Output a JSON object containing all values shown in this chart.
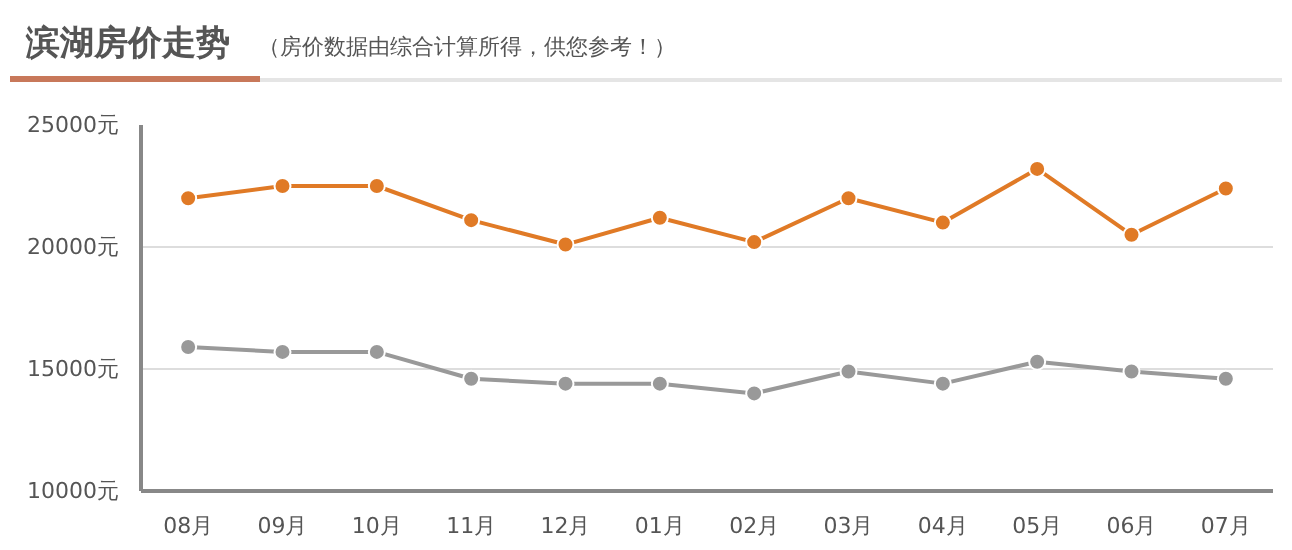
{
  "chart_data": {
    "type": "line",
    "title": "滨湖房价走势",
    "subtitle": "（房价数据由综合计算所得，供您参考！）",
    "categories": [
      "08月",
      "09月",
      "10月",
      "11月",
      "12月",
      "01月",
      "02月",
      "03月",
      "04月",
      "05月",
      "06月",
      "07月"
    ],
    "series": [
      {
        "color": "#e07a26",
        "values": [
          22000,
          22500,
          22500,
          21100,
          20100,
          21200,
          20200,
          22000,
          21000,
          23200,
          20500,
          22400
        ]
      },
      {
        "color": "#999999",
        "values": [
          15900,
          15700,
          15700,
          14600,
          14400,
          14400,
          14000,
          14900,
          14400,
          15300,
          14900,
          14600
        ]
      }
    ],
    "ylim": [
      10000,
      25000
    ],
    "yticks": [
      {
        "value": 10000,
        "label": "10000元"
      },
      {
        "value": 15000,
        "label": "15000元"
      },
      {
        "value": 20000,
        "label": "20000元"
      },
      {
        "value": 25000,
        "label": "25000元"
      }
    ],
    "grid": "y",
    "marker": "circle",
    "line_style": "solid"
  }
}
